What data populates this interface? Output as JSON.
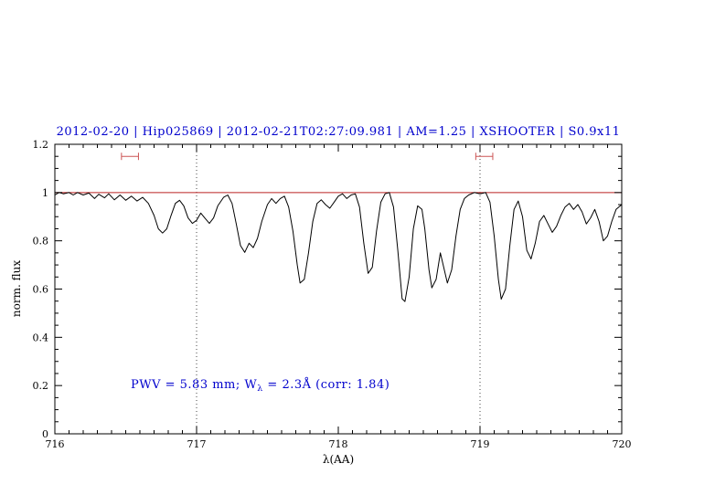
{
  "colors": {
    "accent_blue": "#0000cd",
    "continuum_red": "#bb2222",
    "marker_red": "#cc5555",
    "spectrum_black": "#000000",
    "gridline": "#444444"
  },
  "chart_data": {
    "type": "line",
    "title": "2012-02-20 | Hip025869 | 2012-02-21T02:27:09.981 | AM=1.25 | XSHOOTER | S0.9x11",
    "xlabel": "λ(AA)",
    "ylabel": "norm. flux",
    "xlim": [
      716,
      720
    ],
    "ylim": [
      0,
      1.2
    ],
    "xticks": [
      716,
      717,
      718,
      719,
      720
    ],
    "xtick_labels": [
      "716",
      "717",
      "718",
      "719",
      "720"
    ],
    "yticks": [
      0,
      0.2,
      0.4,
      0.6,
      0.8,
      1,
      1.2
    ],
    "ytick_labels": [
      "0",
      "0.2",
      "0.4",
      "0.6",
      "0.8",
      "1",
      "1.2"
    ],
    "grid": "off",
    "dotted_vlines": [
      717,
      719
    ],
    "continuum": {
      "y": 1.0
    },
    "ew_markers": [
      {
        "x_start": 716.47,
        "x_end": 716.59,
        "y": 1.15
      },
      {
        "x_start": 718.97,
        "x_end": 719.09,
        "y": 1.15
      }
    ],
    "annotations": [
      {
        "text": "PWV = 5.83 mm; W_λ = 2.3Å (corr: 1.84)",
        "prefix": "PWV = 5.83 mm; W",
        "sub": "λ",
        "suffix": " = 2.3Å (corr: 1.84)",
        "x": 716.54,
        "y": 0.2
      }
    ],
    "series": [
      {
        "name": "telluric-spectrum",
        "x": [
          716.0,
          716.03,
          716.06,
          716.1,
          716.13,
          716.16,
          716.2,
          716.24,
          716.28,
          716.31,
          716.35,
          716.38,
          716.42,
          716.46,
          716.5,
          716.54,
          716.58,
          716.62,
          716.66,
          716.7,
          716.73,
          716.76,
          716.79,
          716.82,
          716.85,
          716.88,
          716.91,
          716.94,
          716.97,
          717.0,
          717.03,
          717.06,
          717.09,
          717.12,
          717.15,
          717.19,
          717.22,
          717.25,
          717.28,
          717.31,
          717.34,
          717.37,
          717.4,
          717.43,
          717.46,
          717.5,
          717.53,
          717.56,
          717.59,
          717.62,
          717.65,
          717.68,
          717.71,
          717.73,
          717.76,
          717.79,
          717.82,
          717.85,
          717.88,
          717.91,
          717.94,
          717.97,
          718.0,
          718.03,
          718.06,
          718.09,
          718.12,
          718.15,
          718.18,
          718.21,
          718.24,
          718.27,
          718.3,
          718.33,
          718.36,
          718.39,
          718.42,
          718.45,
          718.47,
          718.5,
          718.53,
          718.56,
          718.59,
          718.61,
          718.64,
          718.66,
          718.69,
          718.72,
          718.74,
          718.77,
          718.8,
          718.83,
          718.86,
          718.89,
          718.92,
          718.96,
          719.0,
          719.04,
          719.07,
          719.1,
          719.13,
          719.15,
          719.18,
          719.21,
          719.24,
          719.27,
          719.3,
          719.33,
          719.36,
          719.39,
          719.42,
          719.45,
          719.48,
          719.51,
          719.54,
          719.57,
          719.6,
          719.63,
          719.66,
          719.69,
          719.72,
          719.75,
          719.78,
          719.81,
          719.84,
          719.87,
          719.9,
          719.93,
          719.96,
          720.0
        ],
        "y": [
          0.99,
          1.0,
          0.995,
          1.0,
          0.99,
          1.0,
          0.99,
          0.998,
          0.975,
          0.993,
          0.978,
          0.995,
          0.97,
          0.99,
          0.968,
          0.985,
          0.965,
          0.98,
          0.955,
          0.905,
          0.85,
          0.832,
          0.85,
          0.905,
          0.955,
          0.968,
          0.945,
          0.895,
          0.872,
          0.885,
          0.915,
          0.893,
          0.872,
          0.895,
          0.945,
          0.98,
          0.99,
          0.955,
          0.87,
          0.78,
          0.752,
          0.79,
          0.772,
          0.81,
          0.88,
          0.95,
          0.975,
          0.955,
          0.975,
          0.985,
          0.94,
          0.84,
          0.7,
          0.625,
          0.64,
          0.75,
          0.88,
          0.955,
          0.97,
          0.95,
          0.935,
          0.96,
          0.985,
          0.995,
          0.975,
          0.99,
          0.995,
          0.94,
          0.79,
          0.665,
          0.69,
          0.84,
          0.96,
          0.995,
          1.0,
          0.94,
          0.76,
          0.56,
          0.548,
          0.65,
          0.85,
          0.945,
          0.93,
          0.85,
          0.68,
          0.605,
          0.64,
          0.75,
          0.7,
          0.625,
          0.68,
          0.82,
          0.93,
          0.975,
          0.99,
          1.0,
          0.995,
          1.0,
          0.96,
          0.82,
          0.64,
          0.558,
          0.6,
          0.78,
          0.93,
          0.965,
          0.9,
          0.76,
          0.725,
          0.79,
          0.88,
          0.905,
          0.87,
          0.835,
          0.86,
          0.905,
          0.94,
          0.955,
          0.93,
          0.95,
          0.92,
          0.87,
          0.895,
          0.93,
          0.88,
          0.8,
          0.82,
          0.88,
          0.93,
          0.95
        ]
      }
    ]
  }
}
